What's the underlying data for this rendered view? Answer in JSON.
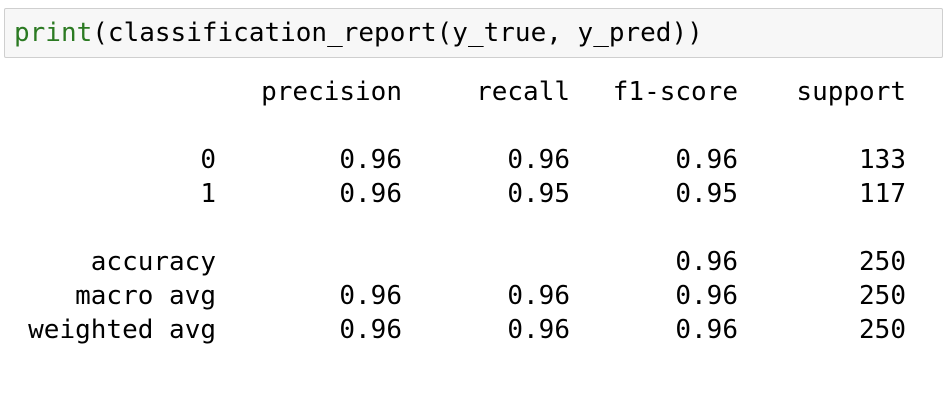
{
  "code": {
    "function": "print",
    "args": "(classification_report(y_true, y_pred))"
  },
  "report": {
    "headers": [
      "precision",
      "recall",
      "f1-score",
      "support"
    ],
    "class_rows": [
      {
        "label": "0",
        "precision": "0.96",
        "recall": "0.96",
        "f1": "0.96",
        "support": "133"
      },
      {
        "label": "1",
        "precision": "0.96",
        "recall": "0.95",
        "f1": "0.95",
        "support": "117"
      }
    ],
    "accuracy": {
      "label": "accuracy",
      "f1": "0.96",
      "support": "250"
    },
    "macro": {
      "label": "macro avg",
      "precision": "0.96",
      "recall": "0.96",
      "f1": "0.96",
      "support": "250"
    },
    "weighted": {
      "label": "weighted avg",
      "precision": "0.96",
      "recall": "0.96",
      "f1": "0.96",
      "support": "250"
    }
  }
}
